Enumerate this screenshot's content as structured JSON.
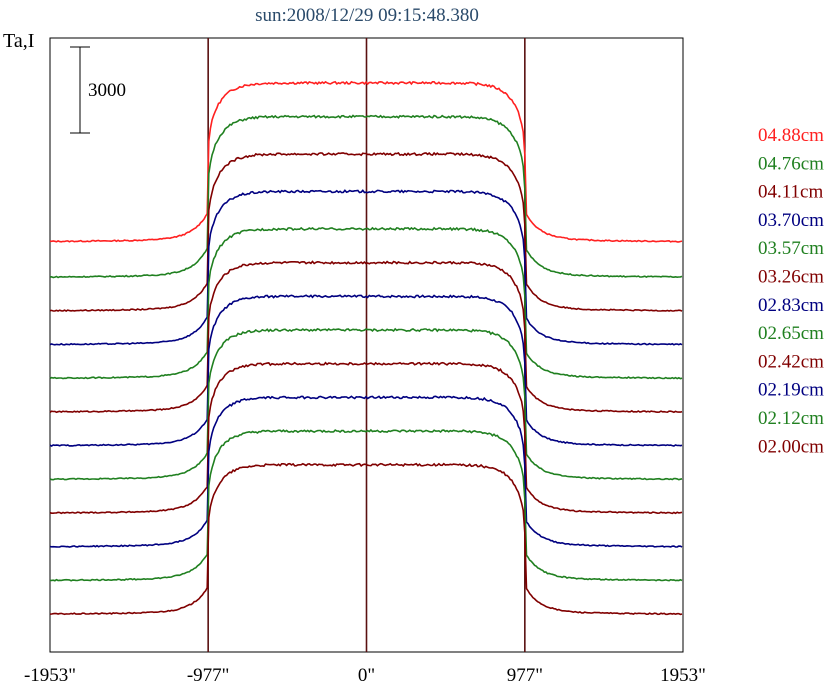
{
  "chart_data": {
    "type": "line",
    "title": "sun:2008/12/29 09:15:48.380",
    "ylabel": "Ta,I",
    "scale_bar_label": "3000",
    "scale_bar_value": 3000,
    "x_ticks": [
      {
        "value": -1953,
        "label": "-1953\""
      },
      {
        "value": -977,
        "label": "-977\""
      },
      {
        "value": 0,
        "label": "0\""
      },
      {
        "value": 977,
        "label": "977\""
      },
      {
        "value": 1953,
        "label": "1953\""
      }
    ],
    "xlim": [
      -1953,
      1953
    ],
    "limb_markers": [
      -977,
      0,
      977
    ],
    "grid": false,
    "legend_position": "right",
    "series": [
      {
        "name": "04.88cm",
        "color": "#ff2020",
        "baseline": 19500,
        "disk": 8500
      },
      {
        "name": "04.76cm",
        "color": "#208020",
        "baseline": 17600,
        "disk": 8600
      },
      {
        "name": "04.11cm",
        "color": "#800000",
        "baseline": 15800,
        "disk": 8400
      },
      {
        "name": "03.70cm",
        "color": "#000080",
        "baseline": 14000,
        "disk": 8200
      },
      {
        "name": "03.57cm",
        "color": "#208020",
        "baseline": 12200,
        "disk": 8000
      },
      {
        "name": "03.26cm",
        "color": "#800000",
        "baseline": 10400,
        "disk": 8000
      },
      {
        "name": "02.83cm",
        "color": "#000080",
        "baseline": 8600,
        "disk": 8000
      },
      {
        "name": "02.65cm",
        "color": "#208020",
        "baseline": 6800,
        "disk": 8000
      },
      {
        "name": "02.42cm",
        "color": "#800000",
        "baseline": 5000,
        "disk": 8000
      },
      {
        "name": "02.19cm",
        "color": "#000080",
        "baseline": 3200,
        "disk": 8000
      },
      {
        "name": "02.12cm",
        "color": "#208020",
        "baseline": 1400,
        "disk": 8000
      },
      {
        "name": "02.00cm",
        "color": "#800000",
        "baseline": -400,
        "disk": 8000
      }
    ],
    "ylim": [
      -2400,
      30400
    ]
  }
}
